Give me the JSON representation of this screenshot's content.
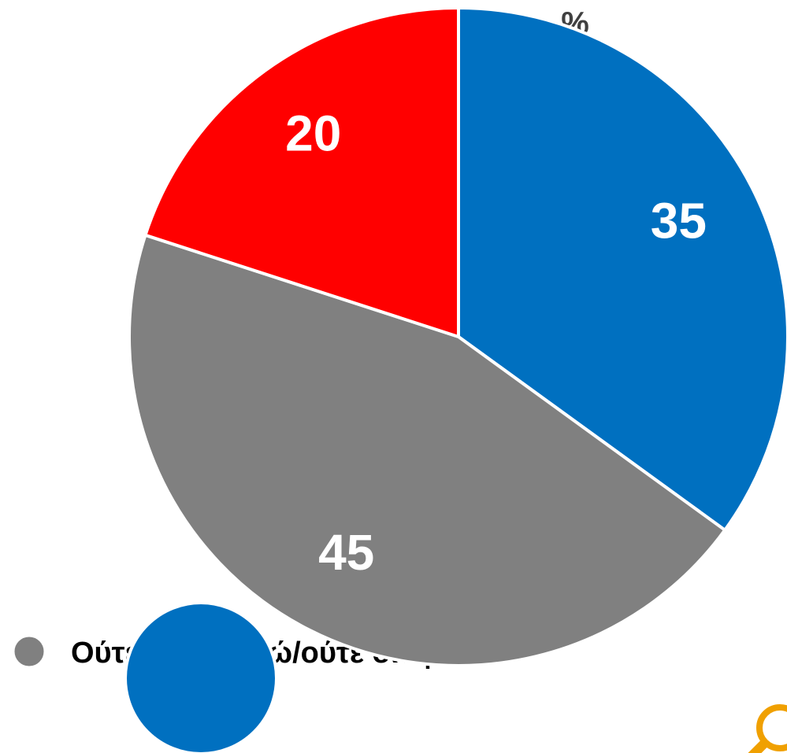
{
  "chart_data": {
    "type": "pie",
    "unit": "%",
    "categories": [
      null,
      "Ούτε συμφωνώ/ούτε διαφωνώ",
      null
    ],
    "values": [
      35,
      45,
      20
    ],
    "colors": [
      "#0070c0",
      "#808080",
      "#ff0000"
    ]
  }
}
